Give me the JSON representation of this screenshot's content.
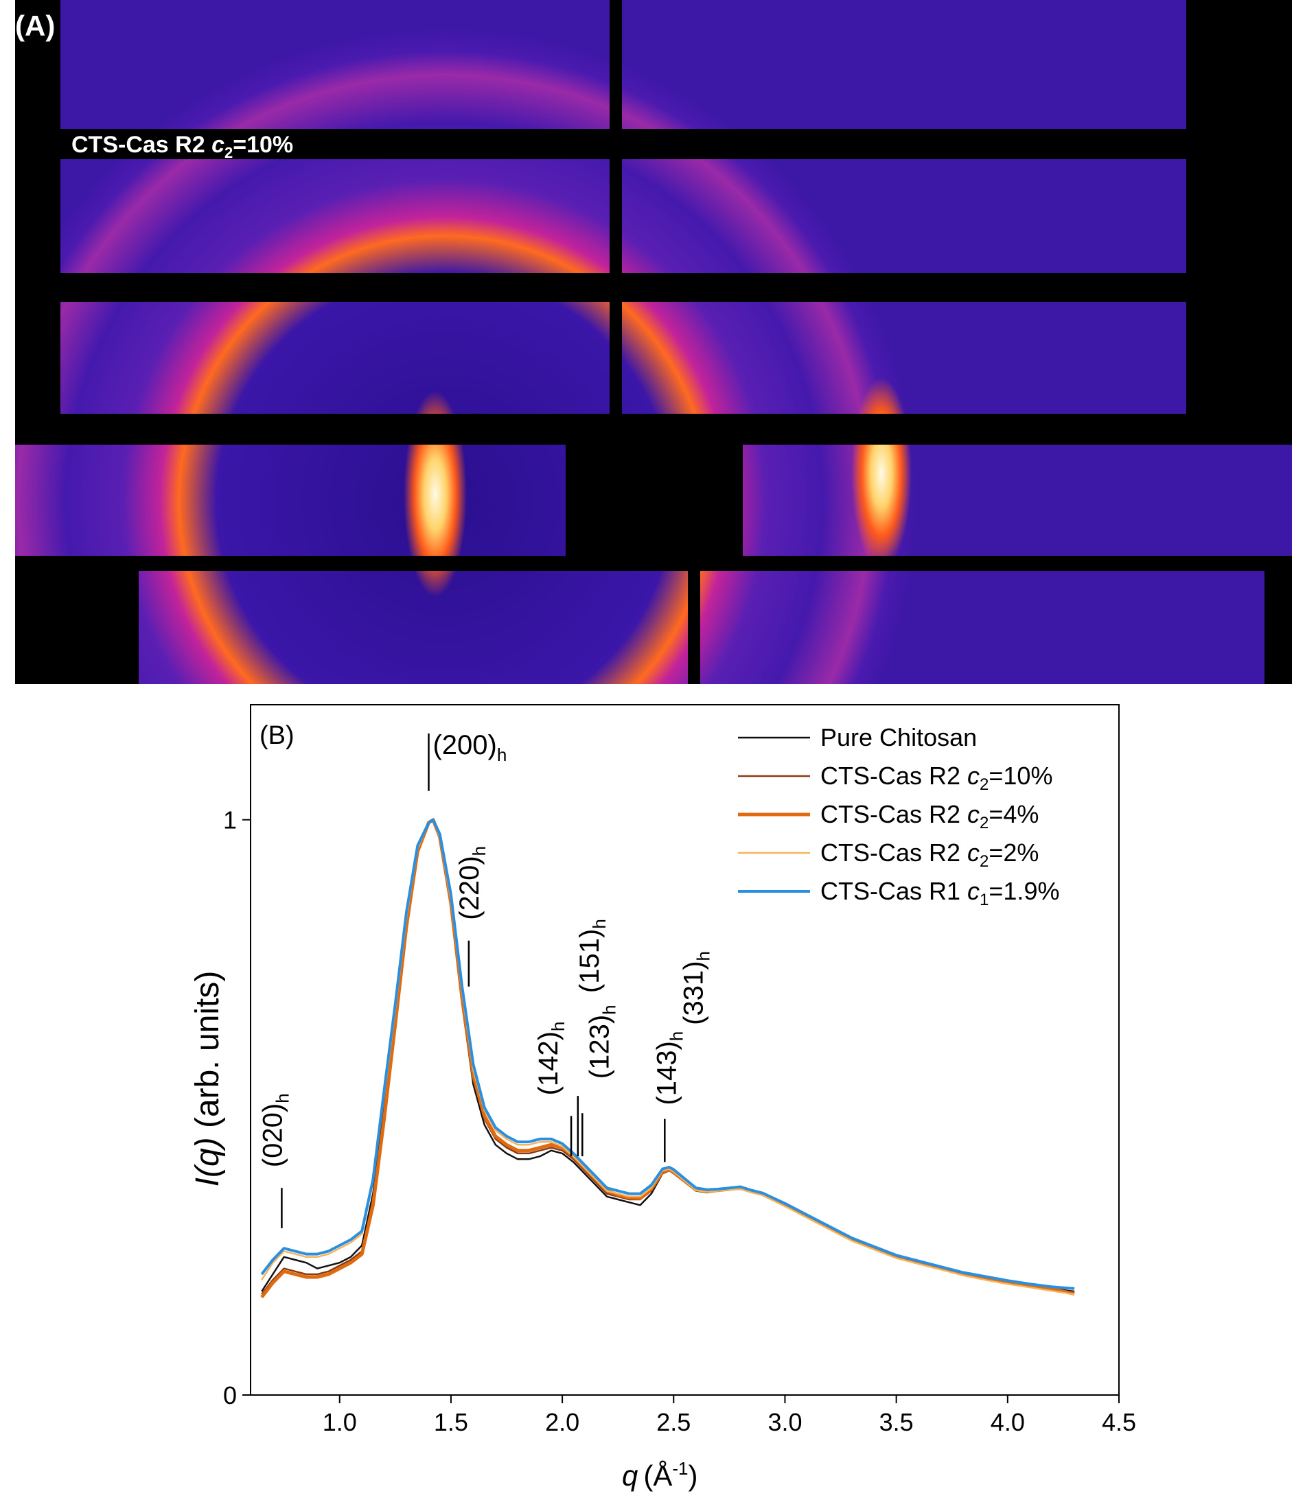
{
  "panel_a": {
    "label": "(A)",
    "sample_label_prefix": "CTS-Cas R2 ",
    "sample_label_var": "c",
    "sample_label_sub": "2",
    "sample_label_suffix": "=10%",
    "colors": {
      "background": "#000000",
      "low": "#3b12a6",
      "mid": "#b01fa8",
      "high": "#ff5a1a",
      "peak": "#fff6d8"
    }
  },
  "chart_data": {
    "type": "line",
    "panel_label": "(B)",
    "xlabel_var": "q",
    "xlabel_unit": "(Å",
    "xlabel_exp": "-1",
    "xlabel_close": ")",
    "ylabel_var": "I(q)",
    "ylabel_rest": " (arb. units)",
    "xlim": [
      0.6,
      4.5
    ],
    "ylim": [
      0,
      1.2
    ],
    "x_ticks": [
      {
        "v": 1.0,
        "label": "1.0"
      },
      {
        "v": 1.5,
        "label": "1.5"
      },
      {
        "v": 2.0,
        "label": "2.0"
      },
      {
        "v": 2.5,
        "label": "2.5"
      },
      {
        "v": 3.0,
        "label": "3.0"
      },
      {
        "v": 3.5,
        "label": "3.5"
      },
      {
        "v": 4.0,
        "label": "4.0"
      },
      {
        "v": 4.5,
        "label": "4.5"
      }
    ],
    "y_ticks": [
      {
        "v": 0,
        "label": "0"
      },
      {
        "v": 1,
        "label": "1"
      }
    ],
    "legend": [
      {
        "pre": "Pure Chitosan",
        "var": "",
        "sub": "",
        "post": "",
        "color": "#111111",
        "width": 2.5
      },
      {
        "pre": "CTS-Cas R2 ",
        "var": "c",
        "sub": "2",
        "post": "=10%",
        "color": "#8b3a12",
        "width": 2.5
      },
      {
        "pre": "CTS-Cas R2 ",
        "var": "c",
        "sub": "2",
        "post": "=4%",
        "color": "#e06a10",
        "width": 5
      },
      {
        "pre": "CTS-Cas R2 ",
        "var": "c",
        "sub": "2",
        "post": "=2%",
        "color": "#f7b35a",
        "width": 2.5
      },
      {
        "pre": "CTS-Cas R1 ",
        "var": "c",
        "sub": "1",
        "post": "=1.9%",
        "color": "#2b8fe0",
        "width": 4
      }
    ],
    "x": [
      0.65,
      0.7,
      0.75,
      0.8,
      0.85,
      0.9,
      0.95,
      1.0,
      1.05,
      1.1,
      1.15,
      1.2,
      1.25,
      1.3,
      1.35,
      1.4,
      1.42,
      1.45,
      1.5,
      1.55,
      1.6,
      1.65,
      1.7,
      1.75,
      1.8,
      1.85,
      1.9,
      1.95,
      2.0,
      2.05,
      2.1,
      2.15,
      2.2,
      2.25,
      2.3,
      2.35,
      2.4,
      2.45,
      2.48,
      2.5,
      2.55,
      2.6,
      2.65,
      2.7,
      2.75,
      2.8,
      2.85,
      2.9,
      3.0,
      3.1,
      3.2,
      3.3,
      3.4,
      3.5,
      3.6,
      3.7,
      3.8,
      3.9,
      4.0,
      4.1,
      4.2,
      4.3
    ],
    "series": [
      {
        "name": "Pure Chitosan",
        "color": "#111111",
        "width": 2.5,
        "values": [
          0.18,
          0.21,
          0.24,
          0.235,
          0.23,
          0.22,
          0.225,
          0.23,
          0.24,
          0.26,
          0.35,
          0.5,
          0.66,
          0.83,
          0.95,
          0.995,
          1.0,
          0.97,
          0.85,
          0.68,
          0.54,
          0.47,
          0.435,
          0.42,
          0.41,
          0.41,
          0.415,
          0.425,
          0.42,
          0.405,
          0.385,
          0.365,
          0.345,
          0.34,
          0.335,
          0.33,
          0.35,
          0.385,
          0.39,
          0.385,
          0.37,
          0.355,
          0.352,
          0.355,
          0.357,
          0.36,
          0.355,
          0.35,
          0.33,
          0.31,
          0.29,
          0.27,
          0.255,
          0.24,
          0.23,
          0.22,
          0.21,
          0.205,
          0.195,
          0.19,
          0.185,
          0.18
        ]
      },
      {
        "name": "CTS-Cas R2 c2=10%",
        "color": "#8b3a12",
        "width": 2.5,
        "values": [
          0.175,
          0.2,
          0.22,
          0.215,
          0.21,
          0.21,
          0.215,
          0.225,
          0.235,
          0.25,
          0.34,
          0.49,
          0.65,
          0.82,
          0.95,
          0.995,
          1.0,
          0.97,
          0.85,
          0.69,
          0.55,
          0.48,
          0.445,
          0.43,
          0.42,
          0.42,
          0.425,
          0.43,
          0.425,
          0.41,
          0.39,
          0.37,
          0.35,
          0.345,
          0.34,
          0.34,
          0.355,
          0.385,
          0.39,
          0.385,
          0.37,
          0.355,
          0.353,
          0.355,
          0.357,
          0.358,
          0.353,
          0.348,
          0.33,
          0.31,
          0.29,
          0.27,
          0.255,
          0.24,
          0.23,
          0.22,
          0.21,
          0.203,
          0.195,
          0.19,
          0.184,
          0.178
        ]
      },
      {
        "name": "CTS-Cas R2 c2=4%",
        "color": "#e06a10",
        "width": 5,
        "values": [
          0.17,
          0.195,
          0.215,
          0.21,
          0.205,
          0.205,
          0.21,
          0.22,
          0.23,
          0.245,
          0.33,
          0.48,
          0.645,
          0.815,
          0.945,
          0.995,
          1.0,
          0.97,
          0.855,
          0.69,
          0.555,
          0.485,
          0.45,
          0.435,
          0.425,
          0.425,
          0.43,
          0.435,
          0.43,
          0.415,
          0.395,
          0.375,
          0.355,
          0.348,
          0.343,
          0.342,
          0.358,
          0.388,
          0.392,
          0.387,
          0.372,
          0.357,
          0.354,
          0.356,
          0.358,
          0.36,
          0.354,
          0.349,
          0.331,
          0.311,
          0.291,
          0.271,
          0.256,
          0.241,
          0.231,
          0.221,
          0.211,
          0.204,
          0.196,
          0.19,
          0.184,
          0.176
        ]
      },
      {
        "name": "CTS-Cas R2 c2=2%",
        "color": "#f7b35a",
        "width": 2.5,
        "values": [
          0.2,
          0.23,
          0.25,
          0.245,
          0.24,
          0.24,
          0.245,
          0.255,
          0.265,
          0.28,
          0.37,
          0.52,
          0.67,
          0.83,
          0.95,
          0.995,
          1.0,
          0.97,
          0.86,
          0.7,
          0.565,
          0.495,
          0.46,
          0.445,
          0.435,
          0.435,
          0.44,
          0.44,
          0.432,
          0.415,
          0.395,
          0.375,
          0.355,
          0.35,
          0.345,
          0.345,
          0.36,
          0.39,
          0.393,
          0.388,
          0.372,
          0.356,
          0.353,
          0.355,
          0.357,
          0.358,
          0.352,
          0.347,
          0.328,
          0.308,
          0.288,
          0.268,
          0.253,
          0.238,
          0.228,
          0.218,
          0.208,
          0.2,
          0.193,
          0.187,
          0.181,
          0.175
        ]
      },
      {
        "name": "CTS-Cas R1 c1=1.9%",
        "color": "#2b8fe0",
        "width": 4,
        "values": [
          0.21,
          0.235,
          0.255,
          0.25,
          0.245,
          0.245,
          0.25,
          0.26,
          0.27,
          0.285,
          0.375,
          0.53,
          0.68,
          0.84,
          0.955,
          0.995,
          1.0,
          0.975,
          0.87,
          0.71,
          0.575,
          0.5,
          0.465,
          0.45,
          0.44,
          0.44,
          0.445,
          0.445,
          0.437,
          0.42,
          0.4,
          0.38,
          0.36,
          0.355,
          0.35,
          0.35,
          0.365,
          0.393,
          0.396,
          0.392,
          0.376,
          0.36,
          0.357,
          0.358,
          0.36,
          0.362,
          0.356,
          0.351,
          0.333,
          0.313,
          0.293,
          0.273,
          0.258,
          0.243,
          0.233,
          0.223,
          0.213,
          0.206,
          0.199,
          0.193,
          0.188,
          0.185
        ]
      }
    ],
    "annotations": [
      {
        "pre": "(020)",
        "sub": "h",
        "q": 0.74,
        "line": [
          0.29,
          0.36
        ]
      },
      {
        "pre": "(200)",
        "sub": "h",
        "q": 1.4,
        "line": [
          1.05,
          1.15
        ]
      },
      {
        "pre": "(220)",
        "sub": "h",
        "q": 1.58,
        "line": [
          0.71,
          0.79
        ]
      },
      {
        "pre": "(142)",
        "sub": "h",
        "q": 2.04,
        "line": [
          0.415,
          0.485
        ]
      },
      {
        "pre": "(151)",
        "sub": "h",
        "q": 2.07,
        "line": [
          0.415,
          0.52
        ]
      },
      {
        "pre": "(123)",
        "sub": "h",
        "q": 2.09,
        "line": [
          0.415,
          0.49
        ]
      },
      {
        "pre": "(143)",
        "sub": "h",
        "q": 2.46,
        "line": [
          0.405,
          0.48
        ]
      },
      {
        "pre": "(331)",
        "sub": "h",
        "q": 2.6,
        "line": null
      }
    ]
  }
}
